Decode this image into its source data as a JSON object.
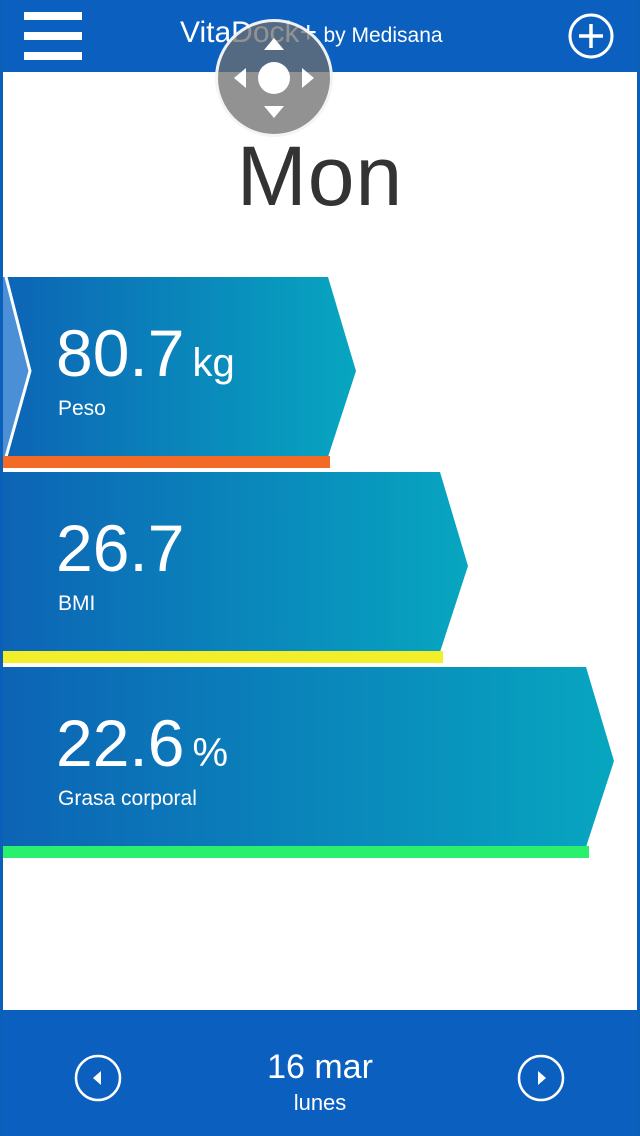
{
  "header": {
    "brand": "VitaDock+",
    "sub": "by Medisana",
    "menu_icon": "hamburger-menu-icon",
    "add_icon": "plus-circle-icon"
  },
  "overlay": {
    "icon": "joystick-dpad-icon"
  },
  "day_title": "Mon",
  "metrics": [
    {
      "value": "80.7",
      "unit": "kg",
      "label": "Peso",
      "bar_color": "#f26a25"
    },
    {
      "value": "26.7",
      "unit": "",
      "label": "BMI",
      "bar_color": "#f3ee2a"
    },
    {
      "value": "22.6",
      "unit": "%",
      "label": "Grasa corporal",
      "bar_color": "#2bf06e"
    }
  ],
  "colors": {
    "header": "#0a5fbf",
    "card_gradient_start": "#0d63b5",
    "card_gradient_end": "#07a6c0"
  },
  "footer": {
    "date": "16 mar",
    "weekday": "lunes",
    "prev_icon": "chevron-left-circle-icon",
    "next_icon": "chevron-right-circle-icon"
  }
}
